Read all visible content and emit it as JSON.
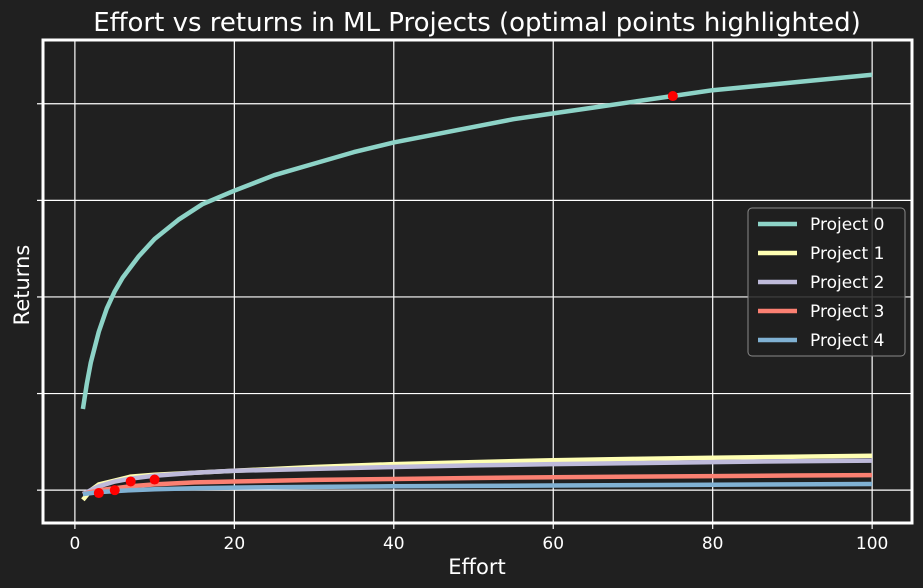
{
  "chart_data": {
    "type": "line",
    "title": "Effort vs returns in ML Projects (optimal points highlighted)",
    "xlabel": "Effort",
    "ylabel": "Returns",
    "xlim": [
      -4,
      105
    ],
    "ylim": [
      -0.17,
      2.33
    ],
    "x_ticks": [
      0,
      20,
      40,
      60,
      80,
      100
    ],
    "y_ticks": [
      0,
      0.5,
      1.0,
      1.5,
      2.0
    ],
    "show_y_tick_labels": false,
    "grid": true,
    "legend": "center-right",
    "series": [
      {
        "name": "Project 0",
        "color": "#8dd3c7",
        "x": [
          1,
          1.5,
          2,
          3,
          4,
          5,
          6,
          8,
          10,
          13,
          16,
          20,
          25,
          30,
          35,
          40,
          45,
          50,
          55,
          60,
          65,
          70,
          75,
          80,
          85,
          90,
          95,
          100
        ],
        "y": [
          0.42,
          0.55,
          0.66,
          0.82,
          0.94,
          1.03,
          1.1,
          1.21,
          1.3,
          1.4,
          1.48,
          1.55,
          1.63,
          1.69,
          1.75,
          1.8,
          1.84,
          1.88,
          1.92,
          1.95,
          1.98,
          2.01,
          2.04,
          2.07,
          2.09,
          2.11,
          2.13,
          2.15
        ]
      },
      {
        "name": "Project 1",
        "color": "#ffffb3",
        "x": [
          1,
          2,
          3,
          5,
          7,
          10,
          15,
          20,
          30,
          40,
          50,
          60,
          70,
          80,
          90,
          100
        ],
        "y": [
          -0.05,
          0.0,
          0.03,
          0.05,
          0.07,
          0.08,
          0.09,
          0.1,
          0.12,
          0.135,
          0.145,
          0.155,
          0.162,
          0.168,
          0.173,
          0.178
        ]
      },
      {
        "name": "Project 2",
        "color": "#bebada",
        "x": [
          1,
          2,
          3,
          5,
          7,
          10,
          15,
          20,
          30,
          40,
          50,
          60,
          70,
          80,
          90,
          100
        ],
        "y": [
          -0.02,
          0.0,
          0.02,
          0.045,
          0.06,
          0.075,
          0.09,
          0.1,
          0.11,
          0.12,
          0.128,
          0.135,
          0.14,
          0.145,
          0.15,
          0.153
        ]
      },
      {
        "name": "Project 3",
        "color": "#fb8072",
        "x": [
          1,
          2,
          3,
          5,
          7,
          10,
          15,
          20,
          30,
          40,
          50,
          60,
          70,
          80,
          90,
          100
        ],
        "y": [
          -0.02,
          -0.01,
          0.0,
          0.01,
          0.02,
          0.03,
          0.04,
          0.045,
          0.053,
          0.058,
          0.063,
          0.067,
          0.07,
          0.073,
          0.076,
          0.078
        ]
      },
      {
        "name": "Project 4",
        "color": "#80b1d3",
        "x": [
          1,
          2,
          3,
          5,
          7,
          10,
          15,
          20,
          30,
          40,
          50,
          60,
          70,
          80,
          90,
          100
        ],
        "y": [
          -0.02,
          -0.015,
          -0.01,
          -0.005,
          0.0,
          0.005,
          0.01,
          0.013,
          0.017,
          0.02,
          0.022,
          0.024,
          0.026,
          0.028,
          0.03,
          0.032
        ]
      }
    ],
    "optimal_points": {
      "color": "#ff0000",
      "x": [
        75,
        3,
        5,
        7,
        10
      ],
      "y": [
        2.04,
        -0.015,
        0.0,
        0.045,
        0.055
      ]
    }
  }
}
